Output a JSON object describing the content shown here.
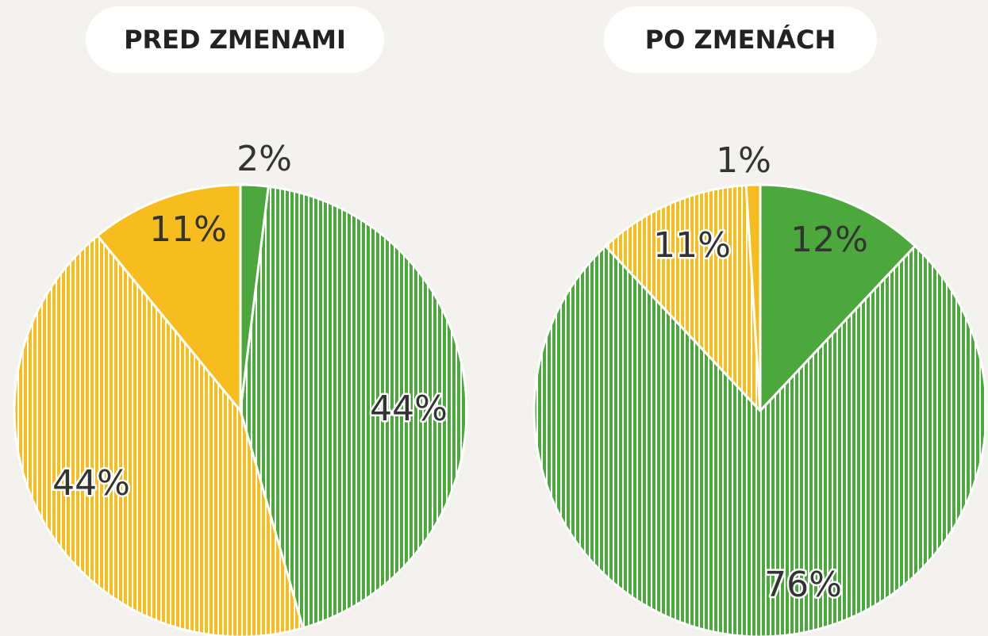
{
  "chart_data": [
    {
      "type": "pie",
      "title": "PRED ZMENAMI",
      "values": [
        2,
        44,
        44,
        11
      ],
      "value_labels": [
        "2%",
        "44%",
        "44%",
        "11%"
      ],
      "colors": [
        "#4ca83c",
        "#4ca83c",
        "#f7bd1e",
        "#f7bd1e"
      ],
      "striped": [
        false,
        true,
        true,
        false
      ]
    },
    {
      "type": "pie",
      "title": "PO ZMENÁCH",
      "values": [
        12,
        76,
        11,
        1
      ],
      "value_labels": [
        "12%",
        "76%",
        "11%",
        "1%"
      ],
      "colors": [
        "#4ca83c",
        "#4ca83c",
        "#f7bd1e",
        "#f7bd1e"
      ],
      "striped": [
        false,
        true,
        true,
        false
      ]
    }
  ]
}
